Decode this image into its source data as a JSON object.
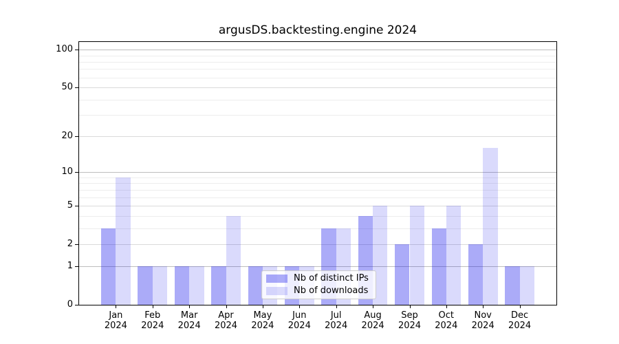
{
  "chart_data": {
    "type": "bar",
    "title": "argusDS.backtesting.engine 2024",
    "categories": [
      "Jan",
      "Feb",
      "Mar",
      "Apr",
      "May",
      "Jun",
      "Jul",
      "Aug",
      "Sep",
      "Oct",
      "Nov",
      "Dec"
    ],
    "category_sublabel": "2024",
    "series": [
      {
        "name": "Nb of distinct IPs",
        "color": "rgba(10,10,235,0.34)",
        "values": [
          3,
          1,
          1,
          1,
          1,
          1,
          3,
          4,
          2,
          3,
          2,
          1
        ]
      },
      {
        "name": "Nb of downloads",
        "color": "rgba(10,10,235,0.15)",
        "values": [
          9,
          1,
          1,
          4,
          1,
          1,
          3,
          5,
          5,
          5,
          16,
          1
        ]
      }
    ],
    "yscale": "log10(1+y)",
    "ylim": [
      0,
      115
    ],
    "y_ticks": [
      0,
      1,
      2,
      5,
      10,
      20,
      50,
      100
    ],
    "y_decade_ticks": [
      1,
      10,
      100
    ],
    "y_minor_ticks": [
      3,
      4,
      6,
      7,
      8,
      9,
      30,
      40,
      60,
      70,
      80,
      90
    ],
    "xlabel": "",
    "ylabel": "",
    "grid": true,
    "legend_position": "lower center",
    "colors": {
      "bar_distinct_ips": "rgba(10,10,235,0.34)",
      "bar_downloads": "rgba(10,10,235,0.15)",
      "decade_grid": "#bdbdbd",
      "major_grid": "#dadada",
      "minor_grid": "#ededed",
      "spine": "#000000"
    }
  }
}
